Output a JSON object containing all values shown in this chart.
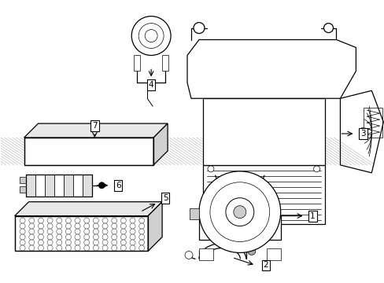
{
  "bg_color": "#ffffff",
  "fig_width": 4.89,
  "fig_height": 3.6,
  "dpi": 100,
  "line_color": "#000000",
  "gray_color": "#888888",
  "light_gray": "#cccccc",
  "label_fontsize": 7.5
}
